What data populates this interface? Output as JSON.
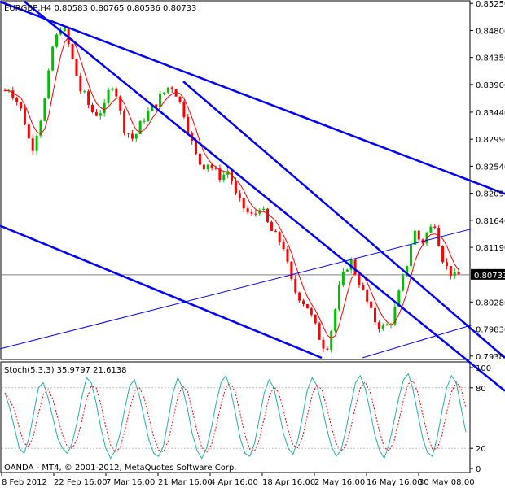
{
  "chart_data": {
    "type": "candlestick",
    "title": "EURGBP,H4  0.80583 0.80765 0.80536 0.80733",
    "symbol": "EURGBP",
    "timeframe": "H4",
    "ohlc": {
      "open": 0.80583,
      "high": 0.80765,
      "low": 0.80536,
      "close": 0.80733
    },
    "price_axis": {
      "ticks": [
        "0.85250",
        "0.84800",
        "0.84350",
        "0.83900",
        "0.83440",
        "0.82990",
        "0.82540",
        "0.82090",
        "0.81640",
        "0.81190",
        "0.80733",
        "0.80280",
        "0.79830",
        "0.79380"
      ],
      "range": [
        0.7935,
        0.8528
      ],
      "current_price": 0.80733,
      "current_price_label": "0.80733"
    },
    "time_axis": {
      "labels": [
        "8 Feb 2012",
        "22 Feb 16:00",
        "7 Mar 16:00",
        "21 Mar 16:00",
        "4 Apr 16:00",
        "18 Apr 16:00",
        "2 May 16:00",
        "16 May 16:00",
        "30 May 08:00"
      ]
    },
    "price_path": [
      0.838,
      0.8385,
      0.837,
      0.8355,
      0.8335,
      0.83,
      0.8285,
      0.832,
      0.8345,
      0.839,
      0.845,
      0.847,
      0.849,
      0.847,
      0.844,
      0.841,
      0.838,
      0.837,
      0.835,
      0.834,
      0.8345,
      0.835,
      0.838,
      0.8395,
      0.836,
      0.832,
      0.831,
      0.83,
      0.831,
      0.833,
      0.834,
      0.835,
      0.836,
      0.837,
      0.838,
      0.839,
      0.838,
      0.836,
      0.834,
      0.831,
      0.828,
      0.826,
      0.8255,
      0.826,
      0.825,
      0.824,
      0.8235,
      0.825,
      0.823,
      0.82,
      0.819,
      0.818,
      0.817,
      0.8175,
      0.819,
      0.817,
      0.815,
      0.814,
      0.813,
      0.812,
      0.808,
      0.805,
      0.804,
      0.803,
      0.802,
      0.8,
      0.798,
      0.796,
      0.795,
      0.798,
      0.802,
      0.806,
      0.808,
      0.81,
      0.808,
      0.806,
      0.804,
      0.802,
      0.8,
      0.799,
      0.7985,
      0.799,
      0.8,
      0.803,
      0.806,
      0.809,
      0.813,
      0.815,
      0.812,
      0.814,
      0.815,
      0.816,
      0.812,
      0.809,
      0.808,
      0.807,
      0.8073
    ],
    "moving_average_color": "#ff0000",
    "candle_up_color": "#00c000",
    "candle_down_color": "#ff0000",
    "trendline_color": "#0000ff",
    "trendlines": [
      {
        "x": [
          0,
          620
        ],
        "y": [
          0.8528,
          0.8208
        ]
      },
      {
        "x": [
          30,
          620
        ],
        "y": [
          0.8528,
          0.788
        ]
      },
      {
        "x": [
          225,
          620
        ],
        "y": [
          0.8395,
          0.7935
        ]
      },
      {
        "x": [
          0,
          395
        ],
        "y": [
          0.8155,
          0.7935
        ]
      },
      {
        "x": [
          0,
          580
        ],
        "y": [
          0.795,
          0.815
        ]
      },
      {
        "x": [
          445,
          580
        ],
        "y": [
          0.7935,
          0.799
        ]
      }
    ],
    "stochastic": {
      "label": "Stoch(5,3,3) 35.9797 21.6138",
      "main": 35.9797,
      "signal": 21.6138,
      "range": [
        0,
        100
      ],
      "levels": [
        80,
        20
      ],
      "ticks": [
        "100",
        "80",
        "20",
        "0"
      ],
      "main_color": "#20b2aa",
      "signal_color": "#ff0000",
      "values": [
        75,
        60,
        40,
        20,
        15,
        30,
        55,
        80,
        85,
        70,
        50,
        30,
        20,
        15,
        25,
        45,
        70,
        90,
        85,
        65,
        40,
        20,
        10,
        18,
        35,
        60,
        82,
        88,
        72,
        50,
        28,
        15,
        12,
        22,
        48,
        75,
        90,
        80,
        60,
        35,
        18,
        10,
        20,
        40,
        65,
        85,
        92,
        78,
        55,
        30,
        15,
        12,
        25,
        50,
        75,
        88,
        80,
        58,
        35,
        20,
        14,
        28,
        52,
        78,
        90,
        82,
        62,
        40,
        22,
        12,
        18,
        38,
        62,
        85,
        92,
        80,
        58,
        34,
        18,
        10,
        24,
        46,
        70,
        88,
        94,
        78,
        54,
        30,
        16,
        12,
        30,
        56,
        80,
        92,
        85,
        60,
        36
      ]
    },
    "copyright": "OANDA - MT4, © 2001-2012, MetaQuotes Software Corp."
  }
}
